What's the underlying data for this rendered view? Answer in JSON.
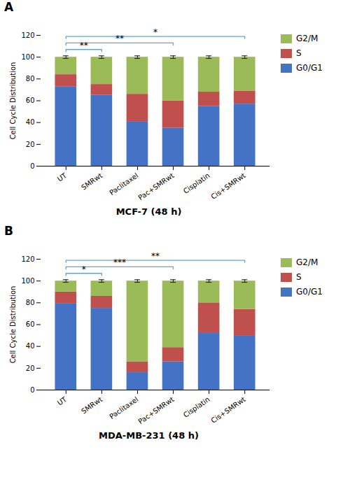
{
  "chart_data": [
    {
      "type": "bar",
      "stacked": true,
      "title": "A",
      "xlabel": "MCF-7 (48 h)",
      "ylabel": "Cell Cycle Distribution",
      "categories": [
        "UT",
        "SMRwt",
        "Paclitaxel",
        "Pac+SMRwt",
        "Cisplatin",
        "Cis+SMRwt"
      ],
      "series": [
        {
          "name": "G0/G1",
          "color": "#4472C4",
          "values": [
            73,
            65,
            41,
            35,
            55,
            57
          ]
        },
        {
          "name": "S",
          "color": "#C0504D",
          "values": [
            11,
            10,
            25,
            25,
            13,
            12
          ]
        },
        {
          "name": "G2/M",
          "color": "#9BBB59",
          "values": [
            16,
            25,
            34,
            40,
            32,
            31
          ]
        }
      ],
      "error_bars": {
        "values": [
          100,
          100,
          100,
          100,
          100,
          100
        ],
        "error": [
          1.2,
          1.2,
          1.2,
          1.2,
          1.2,
          1.2
        ],
        "color": "#1a1a1a"
      },
      "significance": {
        "color": "#6BA3D0",
        "brackets": [
          {
            "from": "UT",
            "to": "SMRwt",
            "y": 107,
            "label": "**"
          },
          {
            "from": "UT",
            "to": "Pac+SMRwt",
            "y": 113,
            "label": "**"
          },
          {
            "from": "UT",
            "to": "Cis+SMRwt",
            "y": 119,
            "label": "*"
          }
        ]
      },
      "ylim": [
        0,
        120
      ],
      "yticks": [
        0,
        20,
        40,
        60,
        80,
        100,
        120
      ],
      "grid": false,
      "legend": "right"
    },
    {
      "type": "bar",
      "stacked": true,
      "title": "B",
      "xlabel": "MDA-MB-231 (48 h)",
      "ylabel": "Cell Cycle Distribution",
      "categories": [
        "UT",
        "SMRwt",
        "Paclitaxel",
        "Pac+SMRwt",
        "Cisplatin",
        "Cis+SMRwt"
      ],
      "series": [
        {
          "name": "G0/G1",
          "color": "#4472C4",
          "values": [
            79,
            75,
            16,
            26,
            52,
            50
          ]
        },
        {
          "name": "S",
          "color": "#C0504D",
          "values": [
            11,
            11,
            10,
            13,
            28,
            24
          ]
        },
        {
          "name": "G2/M",
          "color": "#9BBB59",
          "values": [
            10,
            14,
            74,
            61,
            20,
            26
          ]
        }
      ],
      "error_bars": {
        "values": [
          100,
          100,
          100,
          100,
          100,
          100
        ],
        "error": [
          1.2,
          1.2,
          1.2,
          1.2,
          1.2,
          1.2
        ],
        "color": "#1a1a1a"
      },
      "significance": {
        "color": "#6BA3D0",
        "brackets": [
          {
            "from": "UT",
            "to": "SMRwt",
            "y": 107,
            "label": "*"
          },
          {
            "from": "UT",
            "to": "Pac+SMRwt",
            "y": 113,
            "label": "***"
          },
          {
            "from": "UT",
            "to": "Cis+SMRwt",
            "y": 119,
            "label": "**"
          }
        ]
      },
      "ylim": [
        0,
        120
      ],
      "yticks": [
        0,
        20,
        40,
        60,
        80,
        100,
        120
      ],
      "grid": false,
      "legend": "right"
    }
  ]
}
